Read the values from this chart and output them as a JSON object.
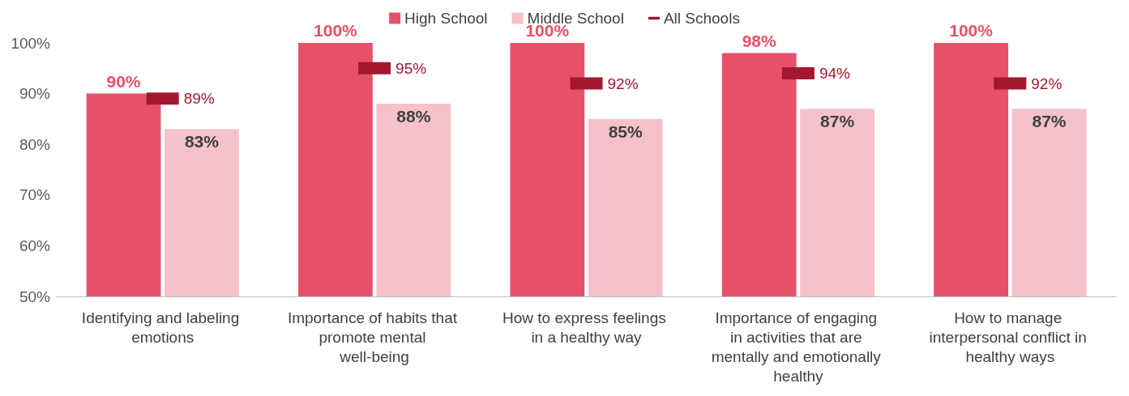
{
  "chart_data": {
    "type": "bar",
    "categories": [
      "Identifying and labeling emotions",
      "Importance of habits that promote mental well-being",
      "How to express feelings in a healthy way",
      "Importance of engaging in activities that are mentally and emotionally healthy",
      "How to manage interpersonal conflict in healthy ways"
    ],
    "series": [
      {
        "name": "High School",
        "color": "#e8506a",
        "values": [
          90,
          100,
          100,
          98,
          100
        ],
        "value_labels": [
          "90%",
          "100%",
          "100%",
          "98%",
          "100%"
        ]
      },
      {
        "name": "Middle School",
        "color": "#f5c1ca",
        "values": [
          83,
          88,
          85,
          87,
          87
        ],
        "value_labels": [
          "83%",
          "88%",
          "85%",
          "87%",
          "87%"
        ]
      },
      {
        "name": "All Schools",
        "type": "scatter",
        "marker": "square",
        "color": "#a3182f",
        "values": [
          89,
          95,
          92,
          94,
          92
        ],
        "value_labels": [
          "89%",
          "95%",
          "92%",
          "94%",
          "92%"
        ]
      }
    ],
    "ylim": [
      50,
      100
    ],
    "yticks": [
      {
        "value": 50,
        "label": "50%"
      },
      {
        "value": 60,
        "label": "60%"
      },
      {
        "value": 70,
        "label": "70%"
      },
      {
        "value": 80,
        "label": "80%"
      },
      {
        "value": 90,
        "label": "90%"
      },
      {
        "value": 100,
        "label": "100%"
      }
    ],
    "grid": false,
    "legend": "top"
  }
}
